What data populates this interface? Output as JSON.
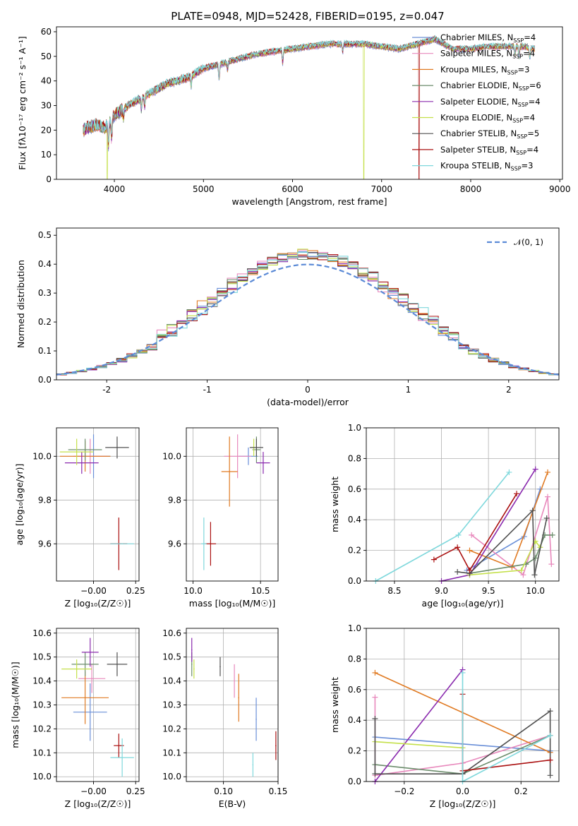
{
  "figure": {
    "title": "PLATE=0948, MJD=52428, FIBERID=0195, z=0.047"
  },
  "chart_data": [
    {
      "id": "spectrum",
      "type": "line",
      "xlabel": "wavelength [Angstrom, rest frame]",
      "ylabel": "Flux [fλ10⁻¹⁷ erg cm⁻² s⁻¹ A⁻¹]",
      "xlim": [
        3350,
        9030
      ],
      "ylim": [
        0,
        62
      ],
      "xticks": [
        4000,
        5000,
        6000,
        7000,
        8000,
        9000
      ],
      "yticks": [
        0,
        10,
        20,
        30,
        40,
        50,
        60
      ],
      "legend": [
        "Chabrier MILES, N_SSP=4",
        "Salpeter MILES, N_SSP=4",
        "Kroupa MILES, N_SSP=3",
        "Chabrier ELODIE, N_SSP=6",
        "Salpeter ELODIE, N_SSP=4",
        "Kroupa ELODIE, N_SSP=4",
        "Chabrier STELIB, N_SSP=5",
        "Salpeter STELIB, N_SSP=4",
        "Kroupa STELIB, N_SSP=3"
      ],
      "legend_main": [
        "Chabrier MILES, N",
        "Salpeter MILES, N",
        "Kroupa MILES, N",
        "Chabrier ELODIE, N",
        "Salpeter ELODIE, N",
        "Kroupa ELODIE, N",
        "Chabrier STELIB, N",
        "Salpeter STELIB, N",
        "Kroupa STELIB, N"
      ],
      "legend_sub": "SSP",
      "legend_n": [
        "=4",
        "=4",
        "=3",
        "=6",
        "=4",
        "=4",
        "=5",
        "=4",
        "=3"
      ],
      "legend_placement": "right",
      "grid": false,
      "continuum": {
        "x": [
          3650,
          3700,
          3800,
          3900,
          4000,
          4200,
          4400,
          4600,
          4800,
          5000,
          5200,
          5400,
          5600,
          5800,
          6000,
          6200,
          6400,
          6600,
          6800,
          7000,
          7200,
          7400,
          7600,
          7800,
          8000,
          8200,
          8400,
          8600,
          8720
        ],
        "y": [
          20,
          21,
          22,
          21,
          26,
          31,
          35,
          39,
          41,
          45,
          47,
          49,
          51,
          52,
          53,
          54,
          55,
          55,
          55,
          54,
          53,
          55,
          57,
          53,
          53,
          54,
          54,
          54,
          53
        ]
      },
      "absorption_features": [
        {
          "x": 3934,
          "depth": 9
        },
        {
          "x": 3969,
          "depth": 8
        },
        {
          "x": 4102,
          "depth": 4
        },
        {
          "x": 4304,
          "depth": 5
        },
        {
          "x": 4340,
          "depth": 4
        },
        {
          "x": 4861,
          "depth": 4
        },
        {
          "x": 5175,
          "depth": 6
        },
        {
          "x": 5270,
          "depth": 3
        },
        {
          "x": 5890,
          "depth": 5
        },
        {
          "x": 6563,
          "depth": 3
        },
        {
          "x": 8498,
          "depth": 3
        },
        {
          "x": 8542,
          "depth": 4
        },
        {
          "x": 8662,
          "depth": 4
        }
      ],
      "bad_pixel_drops": [
        {
          "x": 3920,
          "series": 5
        },
        {
          "x": 6800,
          "series": 5
        },
        {
          "x": 7420,
          "series": 7
        }
      ]
    },
    {
      "id": "residuals",
      "type": "histogram",
      "xlabel": "(data-model)/error",
      "ylabel": "Normed distribution",
      "xlim": [
        -2.5,
        2.5
      ],
      "ylim": [
        0,
        0.525
      ],
      "xticks": [
        -2,
        -1,
        0,
        1,
        2
      ],
      "yticks": [
        0.0,
        0.1,
        0.2,
        0.3,
        0.4,
        0.5
      ],
      "grid": true,
      "bin_width": 0.1,
      "reference_label": "𝒩(0, 1)",
      "reference_curve": "gaussian(0,1)"
    },
    {
      "id": "age-vs-Z",
      "type": "errorbar",
      "xlabel": "Z [log₁₀(Z/Z☉)]",
      "ylabel": "age  [log₁₀(age/yr)]",
      "xlim": [
        -0.22,
        0.27
      ],
      "ylim": [
        9.43,
        10.13
      ],
      "xticks": [
        0.0,
        0.25
      ],
      "xtick_labels": [
        "−0.00",
        "0.25"
      ],
      "yticks": [
        9.6,
        9.8,
        10.0
      ],
      "points": [
        {
          "x": 0.0,
          "y": 10.0,
          "xerr": 0.1,
          "yerr": 0.1
        },
        {
          "x": -0.02,
          "y": 10.0,
          "xerr": 0.1,
          "yerr": 0.08
        },
        {
          "x": -0.05,
          "y": 10.0,
          "xerr": 0.15,
          "yerr": 0.07
        },
        {
          "x": -0.05,
          "y": 10.03,
          "xerr": 0.1,
          "yerr": 0.05
        },
        {
          "x": -0.07,
          "y": 9.97,
          "xerr": 0.1,
          "yerr": 0.05
        },
        {
          "x": -0.1,
          "y": 10.02,
          "xerr": 0.1,
          "yerr": 0.06
        },
        {
          "x": 0.14,
          "y": 10.04,
          "xerr": 0.07,
          "yerr": 0.05
        },
        {
          "x": 0.15,
          "y": 9.6,
          "xerr": 0.05,
          "yerr": 0.12
        },
        {
          "x": 0.17,
          "y": 9.6,
          "xerr": 0.07,
          "yerr": 0.0
        }
      ]
    },
    {
      "id": "age-vs-mass",
      "type": "errorbar",
      "xlabel": "mass [log₁₀(M/M☉)]",
      "xlim": [
        9.95,
        10.63
      ],
      "ylim": [
        9.43,
        10.13
      ],
      "xticks": [
        10.0,
        10.5
      ],
      "yticks": [
        9.6,
        9.8,
        10.0
      ],
      "points": [
        {
          "x": 10.41,
          "y": 10.0,
          "xerr": 0.07,
          "yerr": 0.04
        },
        {
          "x": 10.33,
          "y": 10.0,
          "xerr": 0.1,
          "yerr": 0.1
        },
        {
          "x": 10.27,
          "y": 9.93,
          "xerr": 0.06,
          "yerr": 0.16
        },
        {
          "x": 10.47,
          "y": 10.03,
          "xerr": 0.03,
          "yerr": 0.06
        },
        {
          "x": 10.52,
          "y": 9.97,
          "xerr": 0.05,
          "yerr": 0.05
        },
        {
          "x": 10.45,
          "y": 10.04,
          "xerr": 0.02,
          "yerr": 0.04
        },
        {
          "x": 10.47,
          "y": 10.04,
          "xerr": 0.05,
          "yerr": 0.04
        },
        {
          "x": 10.13,
          "y": 9.6,
          "xerr": 0.04,
          "yerr": 0.1
        },
        {
          "x": 10.08,
          "y": 9.6,
          "xerr": 0.02,
          "yerr": 0.12
        }
      ]
    },
    {
      "id": "weight-vs-age",
      "type": "line",
      "xlabel": "age  [log₁₀(age/yr)]",
      "ylabel": "mass weight",
      "xlim": [
        8.2,
        10.25
      ],
      "ylim": [
        0,
        1
      ],
      "xticks": [
        8.5,
        9.0,
        9.5,
        10.0
      ],
      "yticks": [
        0.0,
        0.2,
        0.4,
        0.6,
        0.8,
        1.0
      ],
      "grid": true,
      "series": [
        {
          "x": [
            9.27,
            9.88,
            10.05
          ],
          "y": [
            0.07,
            0.29,
            0.6
          ]
        },
        {
          "x": [
            9.32,
            9.87,
            10.13,
            10.17
          ],
          "y": [
            0.3,
            0.04,
            0.55,
            0.11
          ]
        },
        {
          "x": [
            9.3,
            9.75,
            10.13
          ],
          "y": [
            0.2,
            0.09,
            0.71
          ]
        },
        {
          "x": [
            9.3,
            9.9,
            10.0,
            10.1,
            10.18
          ],
          "y": [
            0.05,
            0.11,
            0.15,
            0.3,
            0.3
          ]
        },
        {
          "x": [
            9.0,
            9.3,
            10.0
          ],
          "y": [
            0.0,
            0.04,
            0.73
          ]
        },
        {
          "x": [
            9.3,
            9.85,
            10.0,
            10.05
          ],
          "y": [
            0.04,
            0.07,
            0.26,
            0.22
          ]
        },
        {
          "x": [
            9.17,
            9.3,
            9.97,
            9.99,
            10.12
          ],
          "y": [
            0.06,
            0.05,
            0.46,
            0.04,
            0.41
          ]
        },
        {
          "x": [
            8.92,
            9.17,
            9.3,
            9.8
          ],
          "y": [
            0.14,
            0.22,
            0.07,
            0.57
          ]
        },
        {
          "x": [
            8.3,
            9.18,
            9.72
          ],
          "y": [
            0.0,
            0.3,
            0.71
          ]
        }
      ]
    },
    {
      "id": "mass-vs-Z",
      "type": "errorbar",
      "xlabel": "Z [log₁₀(Z/Z☉)]",
      "ylabel": "mass [log₁₀(M/M☉)]",
      "xlim": [
        -0.22,
        0.27
      ],
      "ylim": [
        9.98,
        10.62
      ],
      "xticks": [
        0.0,
        0.25
      ],
      "xtick_labels": [
        "−0.00",
        "0.25"
      ],
      "yticks": [
        10.0,
        10.1,
        10.2,
        10.3,
        10.4,
        10.5,
        10.6
      ],
      "points": [
        {
          "x": -0.02,
          "y": 10.27,
          "xerr": 0.1,
          "yerr": 0.12
        },
        {
          "x": -0.01,
          "y": 10.41,
          "xerr": 0.08,
          "yerr": 0.06
        },
        {
          "x": -0.05,
          "y": 10.33,
          "xerr": 0.14,
          "yerr": 0.11
        },
        {
          "x": -0.05,
          "y": 10.47,
          "xerr": 0.08,
          "yerr": 0.05
        },
        {
          "x": -0.02,
          "y": 10.52,
          "xerr": 0.05,
          "yerr": 0.06
        },
        {
          "x": -0.1,
          "y": 10.45,
          "xerr": 0.09,
          "yerr": 0.04
        },
        {
          "x": 0.14,
          "y": 10.47,
          "xerr": 0.06,
          "yerr": 0.05
        },
        {
          "x": 0.15,
          "y": 10.13,
          "xerr": 0.03,
          "yerr": 0.05
        },
        {
          "x": 0.17,
          "y": 10.08,
          "xerr": 0.07,
          "yerr": 0.08
        }
      ]
    },
    {
      "id": "mass-vs-EBV",
      "type": "errorbar",
      "xlabel": "E(B-V)",
      "xlim": [
        0.066,
        0.15
      ],
      "ylim": [
        9.98,
        10.62
      ],
      "xticks": [
        0.05,
        0.1,
        0.15
      ],
      "xtick_labels": [
        "0.05",
        "0.10",
        "0.15"
      ],
      "yticks": [
        10.0,
        10.1,
        10.2,
        10.3,
        10.4,
        10.5,
        10.6
      ],
      "points": [
        {
          "x": 0.13,
          "y": 10.24,
          "xerr": 0.0,
          "yerr": 0.09
        },
        {
          "x": 0.11,
          "y": 10.4,
          "xerr": 0.0,
          "yerr": 0.07
        },
        {
          "x": 0.114,
          "y": 10.33,
          "xerr": 0.0,
          "yerr": 0.1
        },
        {
          "x": 0.071,
          "y": 10.47,
          "xerr": 0.0,
          "yerr": 0.05
        },
        {
          "x": 0.071,
          "y": 10.53,
          "xerr": 0.0,
          "yerr": 0.05
        },
        {
          "x": 0.073,
          "y": 10.45,
          "xerr": 0.0,
          "yerr": 0.04
        },
        {
          "x": 0.097,
          "y": 10.46,
          "xerr": 0.0,
          "yerr": 0.04
        },
        {
          "x": 0.148,
          "y": 10.13,
          "xerr": 0.0,
          "yerr": 0.06
        },
        {
          "x": 0.127,
          "y": 10.05,
          "xerr": 0.0,
          "yerr": 0.05
        }
      ]
    },
    {
      "id": "weight-vs-Z",
      "type": "line",
      "xlabel": "Z [log₁₀(Z/Z☉)]",
      "ylabel": "mass weight",
      "xlim": [
        -0.33,
        0.33
      ],
      "ylim": [
        0,
        1
      ],
      "xticks": [
        -0.2,
        0.0,
        0.2
      ],
      "xtick_labels": [
        "−0.2",
        "0.0",
        "0.2"
      ],
      "yticks": [
        0.0,
        0.2,
        0.4,
        0.6,
        0.8,
        1.0
      ],
      "grid": true,
      "series": [
        {
          "x": [
            -0.3,
            0.3
          ],
          "y": [
            0.29,
            0.2
          ]
        },
        {
          "x": [
            -0.3,
            -0.3,
            0.0,
            0.3
          ],
          "y": [
            0.55,
            0.04,
            0.12,
            0.3
          ]
        },
        {
          "x": [
            -0.3,
            0.3
          ],
          "y": [
            0.71,
            0.19
          ]
        },
        {
          "x": [
            -0.3,
            0.0,
            0.3
          ],
          "y": [
            0.11,
            0.05,
            0.3
          ]
        },
        {
          "x": [
            -0.3,
            0.0
          ],
          "y": [
            0.0,
            0.73
          ]
        },
        {
          "x": [
            -0.3,
            0.0
          ],
          "y": [
            0.26,
            0.22
          ]
        },
        {
          "x": [
            -0.3,
            -0.3,
            0.0,
            0.3,
            0.3
          ],
          "y": [
            0.41,
            0.05,
            0.05,
            0.46,
            0.04
          ]
        },
        {
          "x": [
            0.0,
            0.0,
            0.3
          ],
          "y": [
            0.57,
            0.07,
            0.14
          ]
        },
        {
          "x": [
            0.0,
            0.0,
            0.3
          ],
          "y": [
            0.71,
            0.0,
            0.3
          ]
        }
      ]
    }
  ],
  "colors": {
    "series": [
      "#6a8fd8",
      "#e888bc",
      "#e07a22",
      "#6b8c6b",
      "#8a2aae",
      "#c4e04a",
      "#505050",
      "#aa1010",
      "#7fd8dc"
    ],
    "reference": "#5b8ad6",
    "grid": "#b0b0b0"
  }
}
